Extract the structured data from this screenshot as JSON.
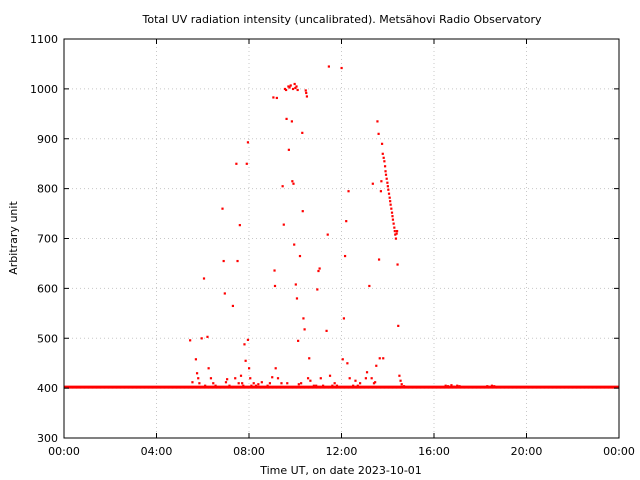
{
  "chart_data": {
    "type": "scatter",
    "title": "Total UV radiation intensity (uncalibrated). Metsähovi Radio Observatory",
    "xlabel": "Time UT, on date 2023-10-01",
    "ylabel": "Arbitrary unit",
    "xlim": [
      0,
      24
    ],
    "ylim": [
      300,
      1100
    ],
    "x_ticks": [
      {
        "value": 0,
        "label": "00:00"
      },
      {
        "value": 4,
        "label": "04:00"
      },
      {
        "value": 8,
        "label": "08:00"
      },
      {
        "value": 12,
        "label": "12:00"
      },
      {
        "value": 16,
        "label": "16:00"
      },
      {
        "value": 20,
        "label": "20:00"
      },
      {
        "value": 24,
        "label": "00:00"
      }
    ],
    "y_ticks": [
      300,
      400,
      500,
      600,
      700,
      800,
      900,
      1000,
      1100
    ],
    "grid": true,
    "marker_color": "#ff0000",
    "baseline": {
      "value": 402,
      "x_from": 0,
      "x_to": 24
    },
    "series": [
      {
        "points": [
          [
            5.45,
            496
          ],
          [
            5.55,
            412
          ],
          [
            5.7,
            458
          ],
          [
            5.75,
            430
          ],
          [
            5.8,
            420
          ],
          [
            5.85,
            410
          ],
          [
            5.95,
            500
          ],
          [
            6.05,
            620
          ],
          [
            6.1,
            405
          ],
          [
            6.2,
            503
          ],
          [
            6.25,
            440
          ],
          [
            6.35,
            420
          ],
          [
            6.45,
            410
          ],
          [
            6.55,
            405
          ],
          [
            6.85,
            760
          ],
          [
            6.9,
            655
          ],
          [
            6.95,
            590
          ],
          [
            7.0,
            412
          ],
          [
            7.05,
            418
          ],
          [
            7.15,
            405
          ],
          [
            7.3,
            565
          ],
          [
            7.4,
            420
          ],
          [
            7.45,
            850
          ],
          [
            7.5,
            655
          ],
          [
            7.55,
            410
          ],
          [
            7.6,
            727
          ],
          [
            7.65,
            425
          ],
          [
            7.7,
            410
          ],
          [
            7.75,
            405
          ],
          [
            7.8,
            488
          ],
          [
            7.85,
            455
          ],
          [
            7.9,
            850
          ],
          [
            7.95,
            893
          ],
          [
            7.95,
            497
          ],
          [
            8.0,
            440
          ],
          [
            8.05,
            420
          ],
          [
            8.1,
            405
          ],
          [
            8.2,
            410
          ],
          [
            8.3,
            405
          ],
          [
            8.4,
            408
          ],
          [
            8.55,
            412
          ],
          [
            8.8,
            405
          ],
          [
            8.9,
            410
          ],
          [
            9.0,
            422
          ],
          [
            9.05,
            983
          ],
          [
            9.1,
            636
          ],
          [
            9.12,
            605
          ],
          [
            9.15,
            440
          ],
          [
            9.2,
            982
          ],
          [
            9.25,
            420
          ],
          [
            9.4,
            410
          ],
          [
            9.45,
            805
          ],
          [
            9.5,
            728
          ],
          [
            9.55,
            1000
          ],
          [
            9.6,
            998
          ],
          [
            9.62,
            940
          ],
          [
            9.65,
            410
          ],
          [
            9.7,
            1005
          ],
          [
            9.72,
            878
          ],
          [
            9.75,
            1003
          ],
          [
            9.8,
            1007
          ],
          [
            9.85,
            935
          ],
          [
            9.87,
            815
          ],
          [
            9.9,
            1000
          ],
          [
            9.92,
            810
          ],
          [
            9.95,
            688
          ],
          [
            9.97,
            1010
          ],
          [
            10.0,
            1002
          ],
          [
            10.02,
            608
          ],
          [
            10.05,
            1005
          ],
          [
            10.07,
            580
          ],
          [
            10.1,
            998
          ],
          [
            10.12,
            495
          ],
          [
            10.15,
            408
          ],
          [
            10.2,
            665
          ],
          [
            10.25,
            410
          ],
          [
            10.3,
            912
          ],
          [
            10.32,
            755
          ],
          [
            10.35,
            540
          ],
          [
            10.4,
            518
          ],
          [
            10.45,
            997
          ],
          [
            10.47,
            992
          ],
          [
            10.5,
            985
          ],
          [
            10.55,
            420
          ],
          [
            10.6,
            460
          ],
          [
            10.65,
            415
          ],
          [
            10.8,
            405
          ],
          [
            10.9,
            405
          ],
          [
            10.95,
            598
          ],
          [
            11.0,
            635
          ],
          [
            11.05,
            640
          ],
          [
            11.1,
            420
          ],
          [
            11.2,
            405
          ],
          [
            11.35,
            515
          ],
          [
            11.4,
            708
          ],
          [
            11.45,
            1045
          ],
          [
            11.5,
            425
          ],
          [
            11.6,
            405
          ],
          [
            11.7,
            410
          ],
          [
            11.8,
            405
          ],
          [
            12.0,
            1042
          ],
          [
            12.05,
            458
          ],
          [
            12.1,
            540
          ],
          [
            12.15,
            665
          ],
          [
            12.2,
            735
          ],
          [
            12.25,
            450
          ],
          [
            12.3,
            795
          ],
          [
            12.35,
            420
          ],
          [
            12.5,
            405
          ],
          [
            12.6,
            415
          ],
          [
            12.7,
            405
          ],
          [
            12.8,
            410
          ],
          [
            13.05,
            420
          ],
          [
            13.1,
            432
          ],
          [
            13.2,
            605
          ],
          [
            13.3,
            420
          ],
          [
            13.35,
            810
          ],
          [
            13.4,
            410
          ],
          [
            13.45,
            412
          ],
          [
            13.5,
            445
          ],
          [
            13.55,
            935
          ],
          [
            13.6,
            910
          ],
          [
            13.62,
            658
          ],
          [
            13.65,
            460
          ],
          [
            13.7,
            795
          ],
          [
            13.72,
            815
          ],
          [
            13.75,
            890
          ],
          [
            13.78,
            870
          ],
          [
            13.8,
            460
          ],
          [
            13.82,
            862
          ],
          [
            13.85,
            855
          ],
          [
            13.88,
            845
          ],
          [
            13.9,
            835
          ],
          [
            13.92,
            828
          ],
          [
            13.95,
            820
          ],
          [
            13.98,
            812
          ],
          [
            14.0,
            805
          ],
          [
            14.02,
            798
          ],
          [
            14.05,
            790
          ],
          [
            14.08,
            782
          ],
          [
            14.1,
            775
          ],
          [
            14.12,
            768
          ],
          [
            14.15,
            760
          ],
          [
            14.18,
            752
          ],
          [
            14.2,
            745
          ],
          [
            14.22,
            738
          ],
          [
            14.25,
            730
          ],
          [
            14.28,
            722
          ],
          [
            14.3,
            715
          ],
          [
            14.32,
            708
          ],
          [
            14.35,
            700
          ],
          [
            14.38,
            710
          ],
          [
            14.4,
            715
          ],
          [
            14.42,
            648
          ],
          [
            14.45,
            525
          ],
          [
            14.5,
            425
          ],
          [
            14.55,
            415
          ],
          [
            14.6,
            408
          ],
          [
            14.7,
            404
          ],
          [
            16.5,
            405
          ],
          [
            16.6,
            404
          ],
          [
            16.75,
            406
          ],
          [
            16.85,
            403
          ],
          [
            17.0,
            405
          ],
          [
            17.1,
            404
          ],
          [
            18.3,
            404
          ],
          [
            18.5,
            405
          ],
          [
            18.6,
            404
          ]
        ]
      }
    ]
  }
}
